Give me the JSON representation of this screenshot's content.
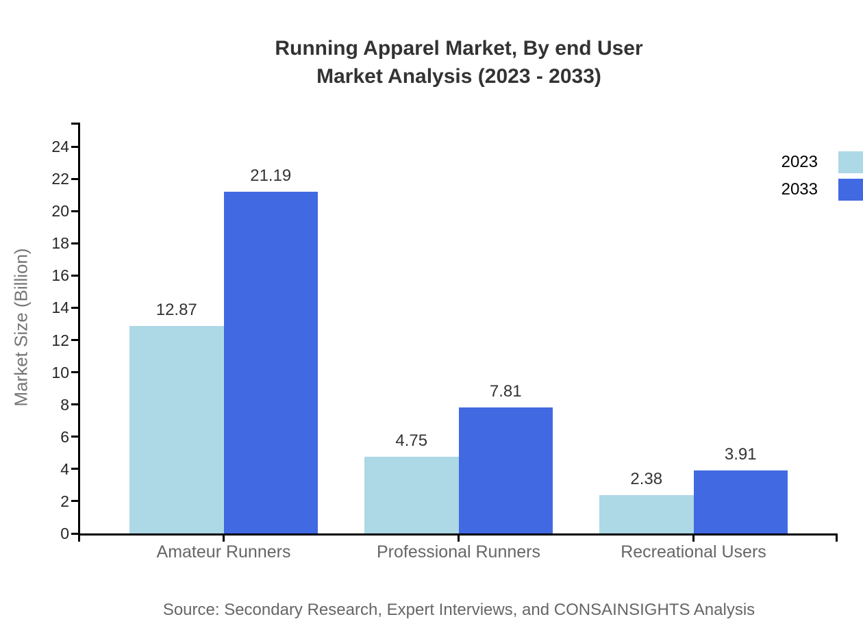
{
  "title": {
    "line1": "Running Apparel Market, By end User",
    "line2": "Market Analysis (2023 - 2033)"
  },
  "source": "Source: Secondary Research, Expert Interviews, and CONSAINSIGHTS Analysis",
  "chart_data": {
    "type": "bar",
    "title": "Running Apparel Market, By end User Market Analysis (2023 - 2033)",
    "categories": [
      "Amateur Runners",
      "Professional Runners",
      "Recreational Users"
    ],
    "series": [
      {
        "name": "2023",
        "color": "#ADD8E6",
        "values": [
          12.87,
          4.75,
          2.38
        ],
        "labels": [
          "12.87",
          "4.75",
          "2.38"
        ]
      },
      {
        "name": "2033",
        "color": "#4169E1",
        "values": [
          21.19,
          7.81,
          3.91
        ],
        "labels": [
          "21.19",
          "7.81",
          "3.91"
        ]
      }
    ],
    "xlabel": "",
    "ylabel": "Market Size (Billion)",
    "ylim": [
      0,
      24.6
    ],
    "yticks": [
      0,
      2,
      4,
      6,
      8,
      10,
      12,
      14,
      16,
      18,
      20,
      22,
      24
    ],
    "grid": false,
    "legend_position": "top-right",
    "value_labels": true
  },
  "colors": {
    "axis": "#000000",
    "tick_label": "#262626",
    "category_label": "#666666",
    "value_label": "#333333",
    "title": "#333333",
    "source": "#666666",
    "y_axis_title": "#757575",
    "series_2023": "#ADD8E6",
    "series_2033": "#4169E1"
  }
}
